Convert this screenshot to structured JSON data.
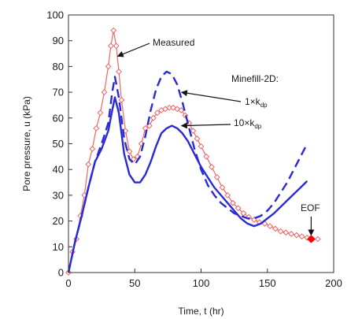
{
  "chart_data": {
    "type": "line",
    "xlabel": "Time, t (hr)",
    "ylabel": "Pore pressure, u (kPa)",
    "xlim": [
      0,
      200
    ],
    "ylim": [
      0,
      100
    ],
    "xticks": [
      0,
      50,
      100,
      150,
      200
    ],
    "yticks": [
      0,
      10,
      20,
      30,
      40,
      50,
      60,
      70,
      80,
      90,
      100
    ],
    "grid": false,
    "legend": "none",
    "colors": {
      "measured": "#ee6666",
      "model": "#2a2ad4",
      "eof_marker": "#ff0000"
    },
    "series": [
      {
        "name": "Measured",
        "style": "line-with-open-diamond-markers",
        "color": "#ee6666",
        "x": [
          0,
          3,
          6,
          9,
          12,
          15,
          18,
          21,
          24,
          27,
          30,
          32,
          34,
          36,
          38,
          40,
          43,
          46,
          49,
          52,
          55,
          58,
          61,
          64,
          67,
          70,
          73,
          76,
          79,
          82,
          85,
          88,
          91,
          94,
          97,
          100,
          104,
          108,
          112,
          116,
          120,
          124,
          128,
          132,
          136,
          140,
          144,
          148,
          152,
          156,
          160,
          164,
          168,
          172,
          176,
          180,
          184,
          188
        ],
        "y": [
          0,
          8,
          13,
          22,
          30,
          42,
          48,
          56,
          62,
          70,
          80,
          88,
          94,
          88,
          78,
          67,
          55,
          47,
          44,
          45,
          50,
          56,
          57,
          60,
          62,
          63,
          63.5,
          64,
          64,
          63.5,
          63,
          61,
          58,
          55,
          52,
          49,
          45,
          41,
          37,
          33,
          30,
          27,
          25,
          23,
          21.5,
          20.5,
          19.5,
          19,
          18,
          17,
          16,
          15.5,
          15,
          14.5,
          14,
          13.5,
          13,
          13
        ]
      },
      {
        "name": "1×k",
        "style": "dashed",
        "color": "#2a2ad4",
        "x": [
          0,
          5,
          10,
          15,
          20,
          25,
          30,
          33,
          35,
          38,
          42,
          46,
          50,
          54,
          58,
          62,
          66,
          70,
          74,
          78,
          82,
          86,
          90,
          95,
          100,
          105,
          110,
          115,
          120,
          125,
          130,
          135,
          140,
          145,
          150,
          155,
          160,
          165,
          170,
          175,
          180
        ],
        "y": [
          0,
          12,
          22,
          33,
          43,
          50,
          58,
          70,
          76,
          68,
          52,
          44,
          42,
          45,
          53,
          63,
          71,
          76,
          78,
          77,
          73,
          66,
          58,
          48,
          40,
          34,
          30,
          27,
          25,
          23,
          22,
          21,
          21,
          22,
          24,
          27,
          31,
          35,
          40,
          45,
          50
        ]
      },
      {
        "name": "10×k",
        "style": "solid",
        "color": "#2a2ad4",
        "x": [
          0,
          5,
          10,
          15,
          20,
          25,
          30,
          33,
          35,
          38,
          42,
          46,
          50,
          54,
          58,
          62,
          66,
          70,
          74,
          78,
          82,
          86,
          90,
          95,
          100,
          105,
          110,
          115,
          120,
          125,
          130,
          135,
          140,
          145,
          150,
          155,
          160,
          165,
          170,
          175,
          180
        ],
        "y": [
          0,
          12,
          22,
          33,
          43,
          48,
          55,
          63,
          68,
          62,
          46,
          38,
          35,
          35,
          38,
          43,
          49,
          54,
          56,
          57,
          56,
          54,
          51,
          46,
          41,
          37,
          33,
          30,
          27,
          24,
          21,
          19,
          18,
          19,
          21,
          23,
          25.5,
          28,
          30.5,
          33,
          35.5
        ]
      }
    ],
    "annotations": [
      {
        "name": "measured-label",
        "text": "Measured",
        "target": [
          36,
          84
        ]
      },
      {
        "name": "model-heading",
        "text": "Minefill-2D:"
      },
      {
        "name": "1x-label",
        "text": "1×k",
        "subscript": "dp",
        "target": [
          83,
          70
        ]
      },
      {
        "name": "10x-label",
        "text": "10×k",
        "subscript": "dp",
        "target": [
          83,
          57
        ]
      },
      {
        "name": "eof-label",
        "text": "EOF",
        "target": [
          183,
          13
        ]
      }
    ]
  }
}
